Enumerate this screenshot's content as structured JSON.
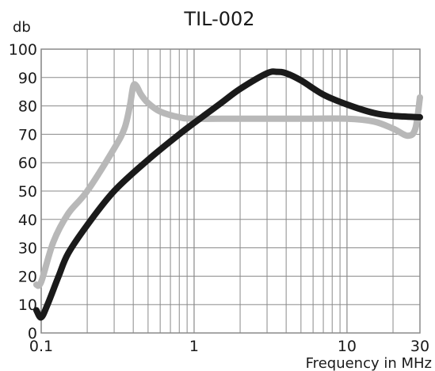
{
  "chart_data": {
    "type": "line",
    "title": "TIL-002",
    "ylabel": "db",
    "xlabel": "Frequency in MHz",
    "x_scale": "log",
    "xlim": [
      0.1,
      30
    ],
    "ylim": [
      0,
      100
    ],
    "x_ticks": [
      {
        "value": 0.1,
        "label": "0.1"
      },
      {
        "value": 1,
        "label": "1"
      },
      {
        "value": 10,
        "label": "10"
      },
      {
        "value": 30,
        "label": "30"
      }
    ],
    "y_ticks": [
      {
        "value": 0,
        "label": "0"
      },
      {
        "value": 10,
        "label": "10"
      },
      {
        "value": 20,
        "label": "20"
      },
      {
        "value": 30,
        "label": "30"
      },
      {
        "value": 40,
        "label": "40"
      },
      {
        "value": 50,
        "label": "50"
      },
      {
        "value": 60,
        "label": "60"
      },
      {
        "value": 70,
        "label": "70"
      },
      {
        "value": 80,
        "label": "80"
      },
      {
        "value": 90,
        "label": "90"
      },
      {
        "value": 100,
        "label": "100"
      }
    ],
    "grid": true,
    "series": [
      {
        "color": "#b8b8b8",
        "x": [
          0.093,
          0.1,
          0.12,
          0.15,
          0.2,
          0.3,
          0.35,
          0.38,
          0.4,
          0.42,
          0.45,
          0.5,
          0.6,
          0.8,
          1,
          2,
          5,
          10,
          15,
          20,
          25,
          28,
          30
        ],
        "y": [
          17,
          18,
          32,
          42,
          50,
          65,
          72,
          80,
          87,
          87,
          84,
          81,
          78,
          76,
          75.5,
          75.5,
          75.5,
          75.5,
          74.5,
          72,
          69.5,
          72,
          83
        ]
      },
      {
        "color": "#1a1a1a",
        "x": [
          0.093,
          0.1,
          0.11,
          0.13,
          0.15,
          0.2,
          0.3,
          0.5,
          0.8,
          1,
          1.5,
          2,
          3,
          3.5,
          4,
          5,
          7,
          10,
          15,
          20,
          30
        ],
        "y": [
          8,
          5.5,
          10,
          20,
          28,
          38,
          50,
          61,
          70,
          74,
          81,
          86,
          91.5,
          92,
          91.5,
          89,
          84,
          80.5,
          77.5,
          76.5,
          76
        ]
      }
    ]
  }
}
